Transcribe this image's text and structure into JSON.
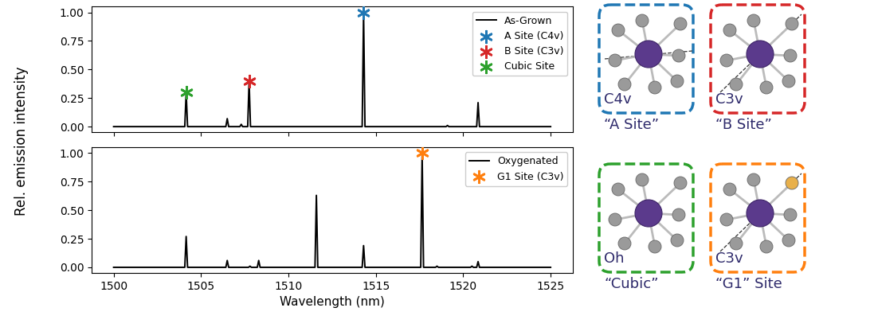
{
  "chart_data": [
    {
      "type": "line",
      "series": [
        {
          "name": "As-Grown",
          "type": "line",
          "color": "#000000",
          "x": [
            1500,
            1504.07,
            1504.15,
            1504.23,
            1506.42,
            1506.5,
            1506.58,
            1507.22,
            1507.3,
            1507.38,
            1507.67,
            1507.75,
            1507.83,
            1514.22,
            1514.3,
            1514.38,
            1519.02,
            1519.1,
            1519.18,
            1520.77,
            1520.85,
            1520.93,
            1525
          ],
          "values": [
            0,
            0,
            0.3,
            0,
            0,
            0.07,
            0,
            0,
            0.02,
            0,
            0,
            0.4,
            0,
            0,
            1.0,
            0,
            0,
            0.01,
            0,
            0,
            0.21,
            0,
            0
          ]
        },
        {
          "name": "A Site (C4v)",
          "type": "scatter",
          "marker": "asterisk",
          "color": "#1f77b4",
          "x": [
            1514.3
          ],
          "values": [
            1.0
          ]
        },
        {
          "name": "B Site (C3v)",
          "type": "scatter",
          "marker": "asterisk",
          "color": "#d62728",
          "x": [
            1507.75
          ],
          "values": [
            0.4
          ]
        },
        {
          "name": "Cubic Site",
          "type": "scatter",
          "marker": "asterisk",
          "color": "#2ca02c",
          "x": [
            1504.15
          ],
          "values": [
            0.3
          ]
        }
      ],
      "xlim": [
        1498.75,
        1526.25
      ],
      "xticks": [
        1500,
        1505,
        1510,
        1515,
        1520,
        1525
      ],
      "ylim": [
        -0.05,
        1.05
      ],
      "yticks": [
        {
          "value": 0,
          "label": "0.00"
        },
        {
          "value": 0.25,
          "label": "0.25"
        },
        {
          "value": 0.5,
          "label": "0.50"
        },
        {
          "value": 0.75,
          "label": "0.75"
        },
        {
          "value": 1.0,
          "label": "1.00"
        }
      ],
      "legend": "upper right",
      "tick_labels": "y"
    },
    {
      "type": "line",
      "xlabel": "Wavelength (nm)",
      "series": [
        {
          "name": "Oxygenated",
          "type": "line",
          "color": "#000000",
          "x": [
            1500,
            1504.07,
            1504.15,
            1504.23,
            1506.42,
            1506.5,
            1506.58,
            1507.72,
            1507.8,
            1507.88,
            1508.22,
            1508.3,
            1508.38,
            1511.52,
            1511.6,
            1511.68,
            1514.22,
            1514.3,
            1514.38,
            1517.57,
            1517.65,
            1517.73,
            1518.42,
            1518.5,
            1518.58,
            1520.42,
            1520.5,
            1520.58,
            1520.77,
            1520.85,
            1520.93,
            1525
          ],
          "values": [
            0,
            0,
            0.27,
            0,
            0,
            0.06,
            0,
            0,
            0.01,
            0,
            0,
            0.06,
            0,
            0,
            0.63,
            0,
            0,
            0.19,
            0,
            0,
            1.0,
            0,
            0,
            0.01,
            0,
            0,
            0.01,
            0,
            0,
            0.05,
            0,
            0
          ]
        },
        {
          "name": "G1 Site (C3v)",
          "type": "scatter",
          "marker": "asterisk",
          "color": "#ff7f0e",
          "x": [
            1517.65
          ],
          "values": [
            1.0
          ]
        }
      ],
      "xlim": [
        1498.75,
        1526.25
      ],
      "xticks": [
        1500,
        1505,
        1510,
        1515,
        1520,
        1525
      ],
      "ylim": [
        -0.05,
        1.05
      ],
      "yticks": [
        {
          "value": 0,
          "label": "0.00"
        },
        {
          "value": 0.25,
          "label": "0.25"
        },
        {
          "value": 0.5,
          "label": "0.50"
        },
        {
          "value": 0.75,
          "label": "0.75"
        },
        {
          "value": 1.0,
          "label": "1.00"
        }
      ],
      "legend": "upper right"
    }
  ],
  "ylabel": "Rel. emission intensity",
  "diagram": {
    "sites": [
      {
        "symmetry": "C4v",
        "label": "“A Site”",
        "color": "#1f77b4"
      },
      {
        "symmetry": "C3v",
        "label": "“B Site”",
        "color": "#d62728"
      },
      {
        "symmetry": "Oh",
        "label": "“Cubic”",
        "color": "#2ca02c"
      },
      {
        "symmetry": "C3v",
        "label": "“G1” Site",
        "color": "#ff7f0e",
        "ligand_color": "#e8b04b"
      }
    ]
  }
}
